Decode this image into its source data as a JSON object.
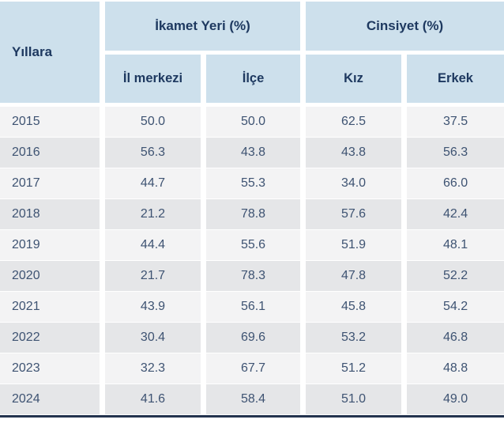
{
  "table": {
    "corner_header": "Yıllara",
    "groups": [
      {
        "label": "İkamet Yeri (%)",
        "columns": [
          "İl merkezi",
          "İlçe"
        ]
      },
      {
        "label": "Cinsiyet (%)",
        "columns": [
          "Kız",
          "Erkek"
        ]
      }
    ],
    "rows": [
      {
        "year": "2015",
        "values": [
          "50.0",
          "50.0",
          "62.5",
          "37.5"
        ]
      },
      {
        "year": "2016",
        "values": [
          "56.3",
          "43.8",
          "43.8",
          "56.3"
        ]
      },
      {
        "year": "2017",
        "values": [
          "44.7",
          "55.3",
          "34.0",
          "66.0"
        ]
      },
      {
        "year": "2018",
        "values": [
          "21.2",
          "78.8",
          "57.6",
          "42.4"
        ]
      },
      {
        "year": "2019",
        "values": [
          "44.4",
          "55.6",
          "51.9",
          "48.1"
        ]
      },
      {
        "year": "2020",
        "values": [
          "21.7",
          "78.3",
          "47.8",
          "52.2"
        ]
      },
      {
        "year": "2021",
        "values": [
          "43.9",
          "56.1",
          "45.8",
          "54.2"
        ]
      },
      {
        "year": "2022",
        "values": [
          "30.4",
          "69.6",
          "53.2",
          "46.8"
        ]
      },
      {
        "year": "2023",
        "values": [
          "32.3",
          "67.7",
          "51.2",
          "48.8"
        ]
      },
      {
        "year": "2024",
        "values": [
          "41.6",
          "58.4",
          "51.0",
          "49.0"
        ]
      }
    ]
  },
  "colors": {
    "header_bg": "#cde0ec",
    "header_text": "#1e3960",
    "row_light": "#f3f3f4",
    "row_dark": "#e5e6e8",
    "body_text": "#3e5372",
    "bottom_bar": "#23334e",
    "separator": "#ffffff"
  },
  "chart_data": {
    "type": "table",
    "title": "",
    "corner_header": "Yıllara",
    "column_groups": [
      {
        "label": "İkamet Yeri (%)",
        "columns": [
          "İl merkezi",
          "İlçe"
        ]
      },
      {
        "label": "Cinsiyet (%)",
        "columns": [
          "Kız",
          "Erkek"
        ]
      }
    ],
    "categories": [
      "2015",
      "2016",
      "2017",
      "2018",
      "2019",
      "2020",
      "2021",
      "2022",
      "2023",
      "2024"
    ],
    "series": [
      {
        "name": "İl merkezi",
        "values": [
          50.0,
          56.3,
          44.7,
          21.2,
          44.4,
          21.7,
          43.9,
          30.4,
          32.3,
          41.6
        ]
      },
      {
        "name": "İlçe",
        "values": [
          50.0,
          43.8,
          55.3,
          78.8,
          55.6,
          78.3,
          56.1,
          69.6,
          67.7,
          58.4
        ]
      },
      {
        "name": "Kız",
        "values": [
          62.5,
          43.8,
          34.0,
          57.6,
          51.9,
          47.8,
          45.8,
          53.2,
          51.2,
          51.0
        ]
      },
      {
        "name": "Erkek",
        "values": [
          37.5,
          56.3,
          66.0,
          42.4,
          48.1,
          52.2,
          54.2,
          46.8,
          48.8,
          49.0
        ]
      }
    ]
  }
}
